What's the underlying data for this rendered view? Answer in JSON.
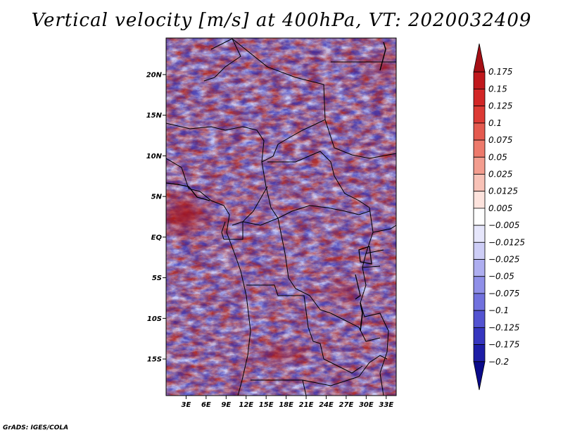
{
  "title": "Vertical velocity [m/s] at 400hPa, VT: 2020032409",
  "footer": "GrADS: IGES/COLA",
  "map": {
    "lat_labels": [
      "20N",
      "15N",
      "10N",
      "5N",
      "EQ",
      "5S",
      "10S",
      "15S"
    ],
    "lon_labels": [
      "3E",
      "6E",
      "9E",
      "12E",
      "15E",
      "18E",
      "21E",
      "24E",
      "27E",
      "30E",
      "33E"
    ],
    "lat_range": [
      -19.5,
      24.5
    ],
    "lon_range": [
      0.0,
      34.5
    ]
  },
  "colorbar": {
    "labels": [
      "0.175",
      "0.15",
      "0.125",
      "0.1",
      "0.075",
      "0.05",
      "0.025",
      "0.0125",
      "0.005",
      "−0.005",
      "−0.0125",
      "−0.025",
      "−0.05",
      "−0.075",
      "−0.1",
      "−0.125",
      "−0.175",
      "−0.2"
    ],
    "colors": [
      "#a50f15",
      "#c0181c",
      "#d22626",
      "#dc3a34",
      "#e45a4f",
      "#ed7a6c",
      "#f39d8f",
      "#f8c2b7",
      "#fde3dd",
      "#ffffff",
      "#e6e6fb",
      "#cdcdf6",
      "#aeaef0",
      "#8f8fe8",
      "#7171de",
      "#5353d1",
      "#3636bf",
      "#1d1da6",
      "#0a0a8a"
    ]
  }
}
